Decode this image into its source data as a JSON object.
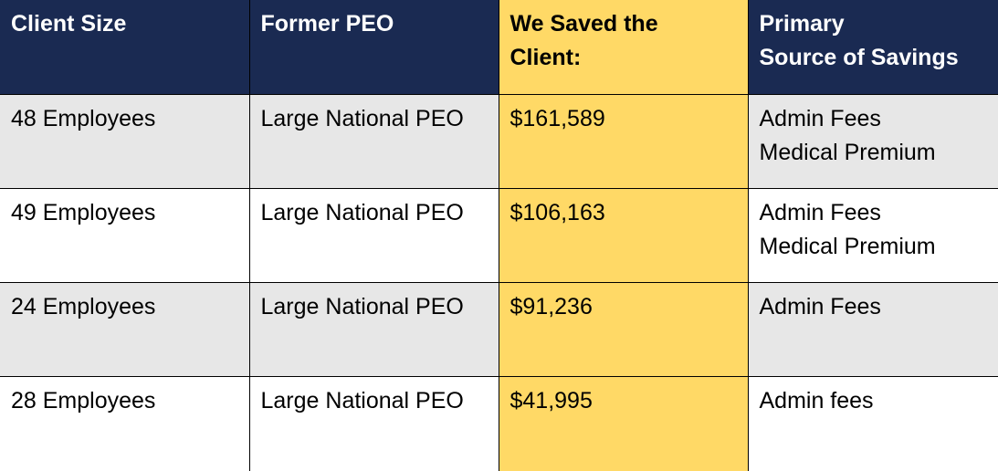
{
  "table": {
    "headers": [
      [
        "Client Size"
      ],
      [
        "Former PEO"
      ],
      [
        "We Saved the",
        "Client:"
      ],
      [
        "Primary",
        "Source of Savings"
      ]
    ],
    "rows": [
      {
        "client_size": "48 Employees",
        "former_peo": "Large National PEO",
        "saved": "$161,589",
        "sources": [
          "Admin Fees",
          "Medical Premium"
        ]
      },
      {
        "client_size": "49 Employees",
        "former_peo": "Large National PEO",
        "saved": "$106,163",
        "sources": [
          "Admin Fees",
          "Medical Premium"
        ]
      },
      {
        "client_size": "24 Employees",
        "former_peo": "Large National PEO",
        "saved": "$91,236",
        "sources": [
          "Admin Fees"
        ]
      },
      {
        "client_size": "28 Employees",
        "former_peo": "Large National PEO",
        "saved": "$41,995",
        "sources": [
          "Admin fees"
        ]
      }
    ],
    "colors": {
      "header_bg": "#1a2a52",
      "highlight": "#ffd966",
      "shaded_row": "#e7e7e7"
    }
  }
}
